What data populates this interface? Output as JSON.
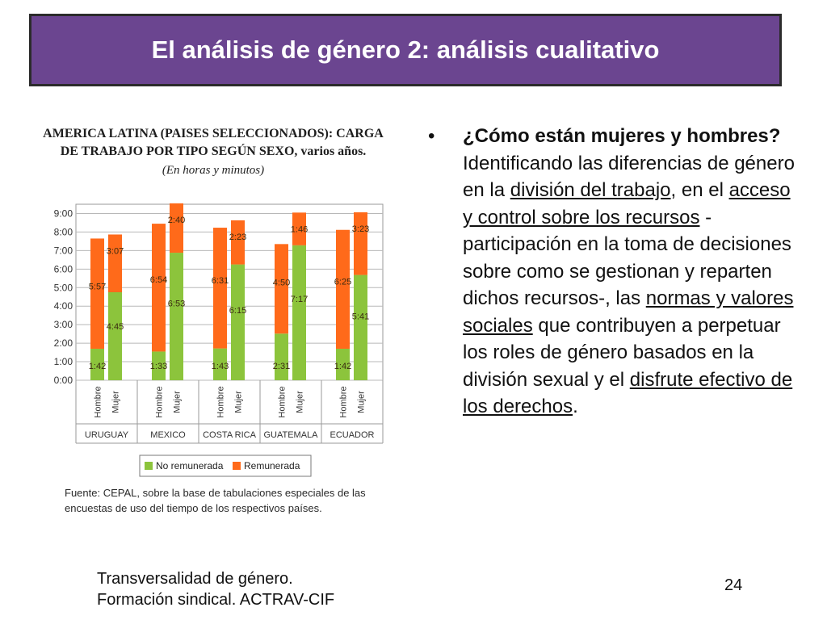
{
  "slide": {
    "title": "El análisis de género 2: análisis cualitativo",
    "bullet": {
      "marker": "•",
      "parts": [
        {
          "text": "¿Cómo están mujeres y hombres?",
          "style": "bold"
        },
        {
          "text": " Identificando las diferencias de género en la ",
          "style": "normal"
        },
        {
          "text": "división del trabajo",
          "style": "underline"
        },
        {
          "text": ", en el ",
          "style": "normal"
        },
        {
          "text": "acceso y control sobre los recursos",
          "style": "underline"
        },
        {
          "text": " -participación en la toma de decisiones sobre como se gestionan y reparten dichos recursos-, las ",
          "style": "normal"
        },
        {
          "text": "normas y valores sociales",
          "style": "underline"
        },
        {
          "text": " que contribuyen a perpetuar los roles de género basados en la división sexual y el ",
          "style": "normal"
        },
        {
          "text": "disfrute efectivo de los derechos",
          "style": "underline"
        },
        {
          "text": ".",
          "style": "normal"
        }
      ]
    },
    "footer_line1": "Transversalidad de género.",
    "footer_line2": "Formación sindical. ACTRAV-CIF",
    "page_number": "24"
  },
  "chart_data": {
    "type": "bar",
    "stacked": true,
    "title_line1": "AMERICA LATINA (PAISES SELECCIONADOS): CARGA",
    "title_line2": "DE TRABAJO POR TIPO SEGÚN SEXO, varios años.",
    "subtitle": "(En horas y minutos)",
    "source_line1": "Fuente: CEPAL, sobre la base de tabulaciones especiales de las",
    "source_line2": "encuestas de uso del tiempo de los respectivos países.",
    "y_ticks": [
      "0:00",
      "1:00",
      "2:00",
      "3:00",
      "4:00",
      "5:00",
      "6:00",
      "7:00",
      "8:00",
      "9:00"
    ],
    "ylim": [
      0,
      9.5
    ],
    "grid": true,
    "legend_position": "bottom",
    "countries": [
      "URUGUAY",
      "MEXICO",
      "COSTA RICA",
      "GUATEMALA",
      "ECUADOR"
    ],
    "sex_labels": [
      "Hombre",
      "Mujer"
    ],
    "series": [
      {
        "name": "No remunerada",
        "color": "#8cc43c"
      },
      {
        "name": "Remunerada",
        "color": "#ff6a1a"
      }
    ],
    "bars": [
      {
        "country": "URUGUAY",
        "sex": "Hombre",
        "no_remunerada": 1.7,
        "no_remunerada_label": "1:42",
        "remunerada": 5.95,
        "remunerada_label": "5:57"
      },
      {
        "country": "URUGUAY",
        "sex": "Mujer",
        "no_remunerada": 4.75,
        "no_remunerada_label": "4:45",
        "remunerada": 3.117,
        "remunerada_label": "3:07"
      },
      {
        "country": "MEXICO",
        "sex": "Hombre",
        "no_remunerada": 1.55,
        "no_remunerada_label": "1:33",
        "remunerada": 6.9,
        "remunerada_label": "6:54"
      },
      {
        "country": "MEXICO",
        "sex": "Mujer",
        "no_remunerada": 6.883,
        "no_remunerada_label": "6:53",
        "remunerada": 2.667,
        "remunerada_label": "2:40"
      },
      {
        "country": "COSTA RICA",
        "sex": "Hombre",
        "no_remunerada": 1.717,
        "no_remunerada_label": "1:43",
        "remunerada": 6.517,
        "remunerada_label": "6:31"
      },
      {
        "country": "COSTA RICA",
        "sex": "Mujer",
        "no_remunerada": 6.25,
        "no_remunerada_label": "6:15",
        "remunerada": 2.383,
        "remunerada_label": "2:23"
      },
      {
        "country": "GUATEMALA",
        "sex": "Hombre",
        "no_remunerada": 2.517,
        "no_remunerada_label": "2:31",
        "remunerada": 4.833,
        "remunerada_label": "4:50"
      },
      {
        "country": "GUATEMALA",
        "sex": "Mujer",
        "no_remunerada": 7.283,
        "no_remunerada_label": "7:17",
        "remunerada": 1.767,
        "remunerada_label": "1:46"
      },
      {
        "country": "ECUADOR",
        "sex": "Hombre",
        "no_remunerada": 1.7,
        "no_remunerada_label": "1:42",
        "remunerada": 6.417,
        "remunerada_label": "6:25"
      },
      {
        "country": "ECUADOR",
        "sex": "Mujer",
        "no_remunerada": 5.683,
        "no_remunerada_label": "5:41",
        "remunerada": 3.383,
        "remunerada_label": "3:23"
      }
    ]
  }
}
